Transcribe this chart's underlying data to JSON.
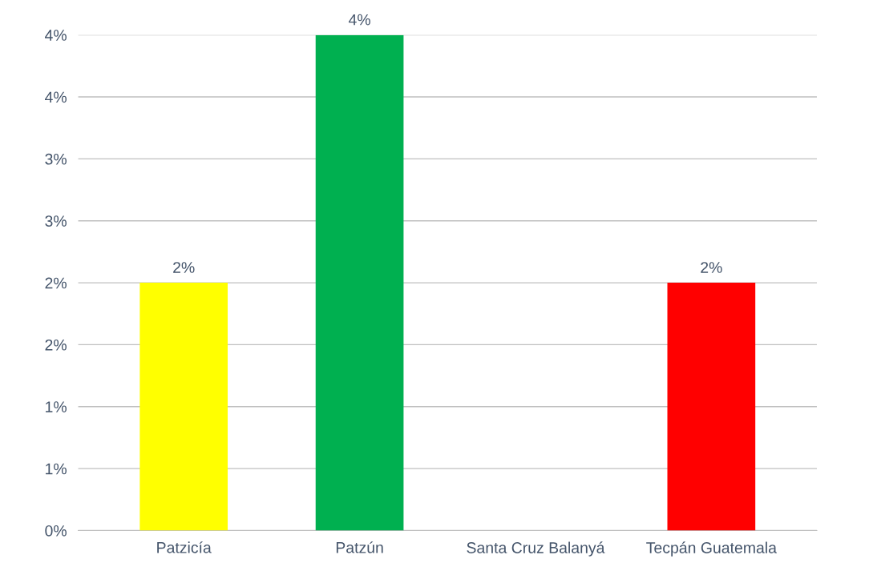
{
  "chart_data": {
    "type": "bar",
    "categories": [
      "Patzicía",
      "Patzún",
      "Santa Cruz Balanyá",
      "Tecpán Guatemala"
    ],
    "values": [
      2.0,
      4.0,
      0,
      2.0
    ],
    "colors": [
      "#ffff00",
      "#00b050",
      "#004f8f",
      "#ff0000"
    ],
    "value_labels": [
      "2%",
      "4%",
      null,
      "2%"
    ],
    "ylim": [
      0,
      4.0
    ],
    "yticks": [
      {
        "value": 0,
        "label": "0%"
      },
      {
        "value": 0.5,
        "label": "1%"
      },
      {
        "value": 1.0,
        "label": "1%"
      },
      {
        "value": 1.5,
        "label": "2%"
      },
      {
        "value": 2.0,
        "label": "2%"
      },
      {
        "value": 2.5,
        "label": "3%"
      },
      {
        "value": 3.0,
        "label": "3%"
      },
      {
        "value": 3.5,
        "label": "4%"
      },
      {
        "value": 4.0,
        "label": "4%"
      }
    ],
    "grid": "y",
    "legend": false
  }
}
